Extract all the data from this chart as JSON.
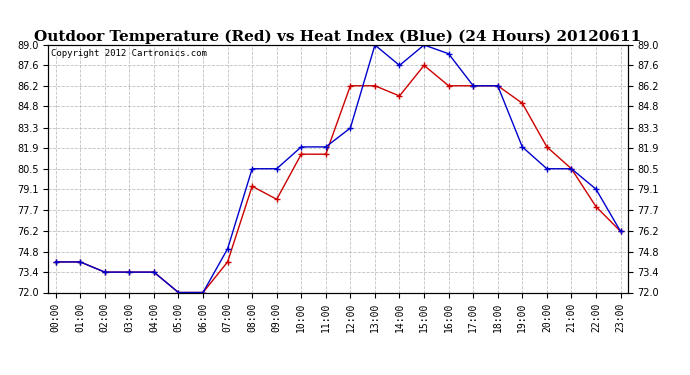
{
  "title": "Outdoor Temperature (Red) vs Heat Index (Blue) (24 Hours) 20120611",
  "copyright": "Copyright 2012 Cartronics.com",
  "hours": [
    0,
    1,
    2,
    3,
    4,
    5,
    6,
    7,
    8,
    9,
    10,
    11,
    12,
    13,
    14,
    15,
    16,
    17,
    18,
    19,
    20,
    21,
    22,
    23
  ],
  "hour_labels": [
    "00:00",
    "01:00",
    "02:00",
    "03:00",
    "04:00",
    "05:00",
    "06:00",
    "07:00",
    "08:00",
    "09:00",
    "10:00",
    "11:00",
    "12:00",
    "13:00",
    "14:00",
    "15:00",
    "16:00",
    "17:00",
    "18:00",
    "19:00",
    "20:00",
    "21:00",
    "22:00",
    "23:00"
  ],
  "red_temp": [
    74.1,
    74.1,
    73.4,
    73.4,
    73.4,
    72.0,
    72.0,
    74.1,
    79.3,
    78.4,
    81.5,
    81.5,
    86.2,
    86.2,
    85.5,
    87.6,
    86.2,
    86.2,
    86.2,
    85.0,
    82.0,
    80.5,
    77.9,
    76.2
  ],
  "blue_heat": [
    74.1,
    74.1,
    73.4,
    73.4,
    73.4,
    72.0,
    72.0,
    75.0,
    80.5,
    80.5,
    82.0,
    82.0,
    83.3,
    89.0,
    87.6,
    89.0,
    88.4,
    86.2,
    86.2,
    82.0,
    80.5,
    80.5,
    79.1,
    76.2
  ],
  "ylim_min": 72.0,
  "ylim_max": 89.0,
  "yticks": [
    72.0,
    73.4,
    74.8,
    76.2,
    77.7,
    79.1,
    80.5,
    81.9,
    83.3,
    84.8,
    86.2,
    87.6,
    89.0
  ],
  "red_color": "#cc0000",
  "blue_color": "#0000cc",
  "bg_color": "#ffffff",
  "grid_color": "#c0c0c0",
  "title_fontsize": 11,
  "copyright_fontsize": 6.5,
  "tick_fontsize": 7,
  "figwidth": 6.9,
  "figheight": 3.75,
  "dpi": 100
}
